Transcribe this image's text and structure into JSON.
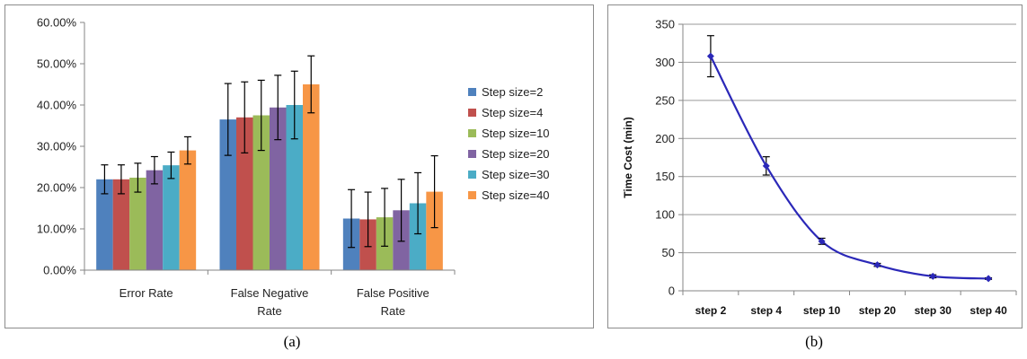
{
  "captions": {
    "a": "(a)",
    "b": "(b)"
  },
  "chart_data": [
    {
      "type": "bar",
      "categories": [
        "Error Rate",
        "False Negative Rate",
        "False Positive Rate"
      ],
      "series": [
        {
          "name": "Step size=2",
          "color": "#4f81bd",
          "values": [
            22.0,
            36.5,
            12.5
          ],
          "error": [
            3.5,
            8.7,
            7.0
          ]
        },
        {
          "name": "Step size=4",
          "color": "#c0504d",
          "values": [
            22.0,
            37.0,
            12.3
          ],
          "error": [
            3.5,
            8.6,
            6.6
          ]
        },
        {
          "name": "Step size=10",
          "color": "#9bbb59",
          "values": [
            22.4,
            37.5,
            12.8
          ],
          "error": [
            3.5,
            8.5,
            7.0
          ]
        },
        {
          "name": "Step size=20",
          "color": "#8064a2",
          "values": [
            24.2,
            39.4,
            14.5
          ],
          "error": [
            3.3,
            7.8,
            7.5
          ]
        },
        {
          "name": "Step size=30",
          "color": "#4bacc6",
          "values": [
            25.4,
            40.0,
            16.2
          ],
          "error": [
            3.2,
            8.2,
            7.4
          ]
        },
        {
          "name": "Step size=40",
          "color": "#f79646",
          "values": [
            29.0,
            45.0,
            19.0
          ],
          "error": [
            3.3,
            6.9,
            8.7
          ]
        }
      ],
      "ylim": [
        0,
        60
      ],
      "yticks": [
        "0.00%",
        "10.00%",
        "20.00%",
        "30.00%",
        "40.00%",
        "50.00%",
        "60.00%"
      ],
      "legend_position": "right",
      "grid": false
    },
    {
      "type": "line",
      "categories": [
        "step 2",
        "step 4",
        "step 10",
        "step 20",
        "step 30",
        "step 40"
      ],
      "series": [
        {
          "color": "#2b28b8",
          "values": [
            308,
            164,
            65,
            34,
            19,
            16
          ],
          "error": [
            27,
            12,
            4,
            2,
            2,
            1
          ]
        }
      ],
      "ylabel": "Time Cost  (min)",
      "ylim": [
        0,
        350
      ],
      "yticks": [
        "0",
        "50",
        "100",
        "150",
        "200",
        "250",
        "300",
        "350"
      ],
      "grid": true
    }
  ]
}
